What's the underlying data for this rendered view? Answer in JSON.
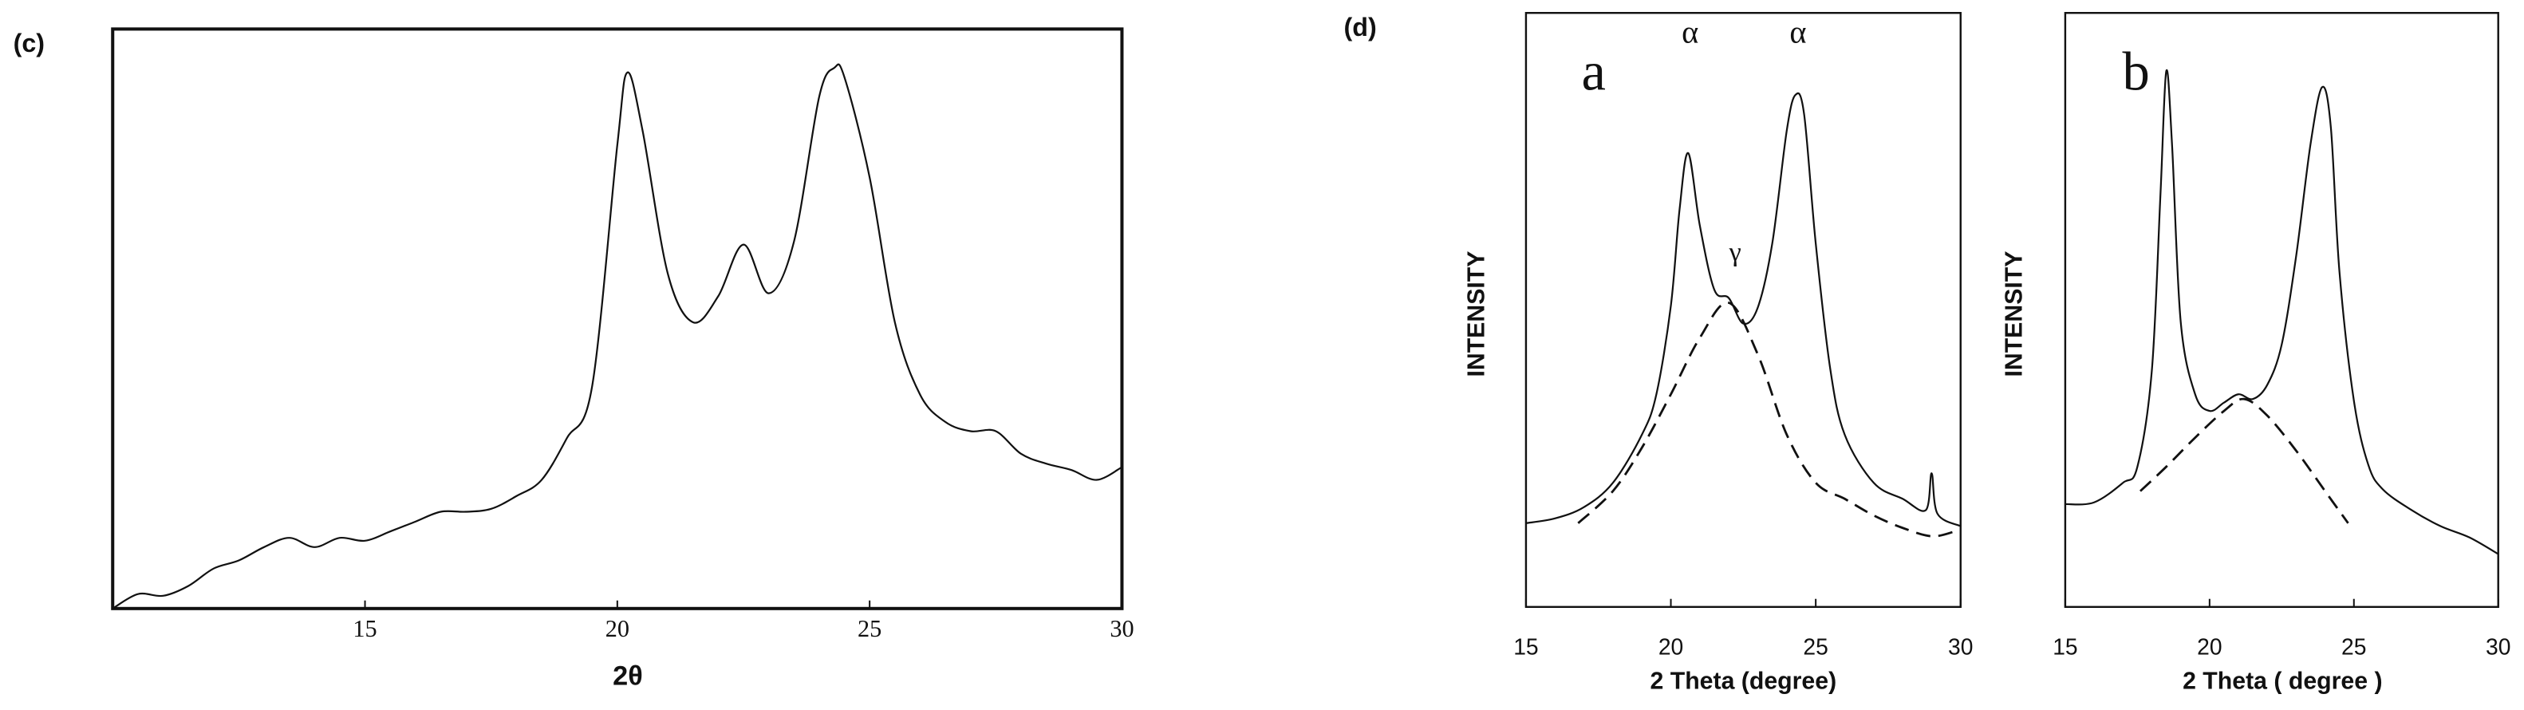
{
  "chart_data": [
    {
      "type": "line",
      "panel_label": "(c)",
      "x_label": "2θ",
      "xlim": [
        10,
        30
      ],
      "ylim": [
        0,
        100
      ],
      "xticks": [
        15,
        20,
        25,
        30
      ],
      "series": [
        {
          "color": "#111111",
          "dashed": false,
          "x": [
            10,
            10.5,
            11,
            11.5,
            12,
            12.5,
            13,
            13.5,
            14,
            14.5,
            15,
            15.5,
            16,
            16.5,
            17,
            17.5,
            18,
            18.5,
            19,
            19.5,
            20,
            20.2,
            20.5,
            21,
            21.5,
            22,
            22.5,
            23,
            23.5,
            24,
            24.3,
            24.5,
            25,
            25.5,
            26,
            26.5,
            27,
            27.5,
            28,
            28.5,
            29,
            29.5,
            30
          ],
          "values": [
            0,
            2.5,
            2.2,
            3.9,
            6.9,
            8.3,
            10.6,
            12.2,
            10.6,
            12.2,
            11.7,
            13.3,
            15,
            16.7,
            16.7,
            17.2,
            19.4,
            22.2,
            29.4,
            38.3,
            80,
            92.5,
            82.5,
            57.8,
            49.4,
            53.9,
            62.8,
            54.4,
            63.3,
            88.3,
            93.3,
            91.7,
            74.4,
            49.4,
            36.9,
            32.2,
            30.6,
            30.6,
            26.7,
            25,
            23.9,
            22.2,
            24.4
          ]
        }
      ]
    },
    {
      "type": "line",
      "panel_label": "(d)",
      "x_label": "2 Theta (degree)",
      "y_label": "INTENSITY",
      "annotations": [
        "a",
        "α",
        "α",
        "γ"
      ],
      "xlim": [
        15,
        30
      ],
      "ylim": [
        0,
        100
      ],
      "xticks": [
        15,
        20,
        25,
        30
      ],
      "series": [
        {
          "color": "#111111",
          "dashed": false,
          "x": [
            15,
            16,
            17,
            18,
            19,
            19.5,
            20,
            20.3,
            20.6,
            21,
            21.5,
            22,
            22.5,
            23,
            23.5,
            24,
            24.3,
            24.6,
            25,
            25.5,
            26,
            27,
            28,
            28.8,
            29,
            29.2,
            30
          ],
          "values": [
            14.1,
            14.9,
            16.8,
            20.9,
            29,
            35.8,
            50.7,
            66.9,
            76.4,
            64.2,
            53.4,
            52,
            47.7,
            50.4,
            61.2,
            80.2,
            86.2,
            82.9,
            61.2,
            40.1,
            29,
            20.9,
            18.2,
            16.3,
            22.5,
            15.7,
            13.6
          ]
        },
        {
          "color": "#111111",
          "dashed": true,
          "x": [
            16.8,
            18,
            19,
            20,
            21,
            22,
            23,
            24,
            25,
            26,
            27,
            28,
            29,
            29.8
          ],
          "values": [
            14.1,
            19.5,
            26.8,
            35.8,
            45.3,
            51.2,
            42.5,
            29,
            20.9,
            18.2,
            15.4,
            13.3,
            11.9,
            12.7
          ]
        }
      ]
    },
    {
      "type": "line",
      "x_label": "2 Theta ( degree )",
      "y_label": "INTENSITY",
      "annotations": [
        "b"
      ],
      "xlim": [
        15,
        30
      ],
      "ylim": [
        0,
        100
      ],
      "xticks": [
        15,
        20,
        25,
        30
      ],
      "series": [
        {
          "color": "#111111",
          "dashed": false,
          "x": [
            15,
            16,
            17,
            17.5,
            18,
            18.3,
            18.5,
            18.7,
            19,
            19.5,
            20,
            20.5,
            21,
            21.5,
            22,
            22.5,
            23,
            23.5,
            23.9,
            24.2,
            24.5,
            25,
            25.5,
            26,
            27,
            28,
            29,
            30
          ],
          "values": [
            17.3,
            17.6,
            20.9,
            23.6,
            39.8,
            69.6,
            90.2,
            77.8,
            48,
            35.8,
            33,
            34.4,
            35.8,
            35,
            37.4,
            44.2,
            59.1,
            78,
            87.5,
            80.8,
            56.4,
            34.7,
            23.9,
            19.8,
            16.3,
            13.6,
            11.7,
            8.9
          ]
        },
        {
          "color": "#111111",
          "dashed": true,
          "x": [
            17.6,
            18.5,
            19.5,
            20.5,
            21.2,
            22,
            23,
            24,
            24.8
          ],
          "values": [
            19.5,
            23.6,
            28.5,
            33,
            35,
            32.2,
            26.3,
            19.5,
            14.1
          ]
        }
      ]
    }
  ]
}
